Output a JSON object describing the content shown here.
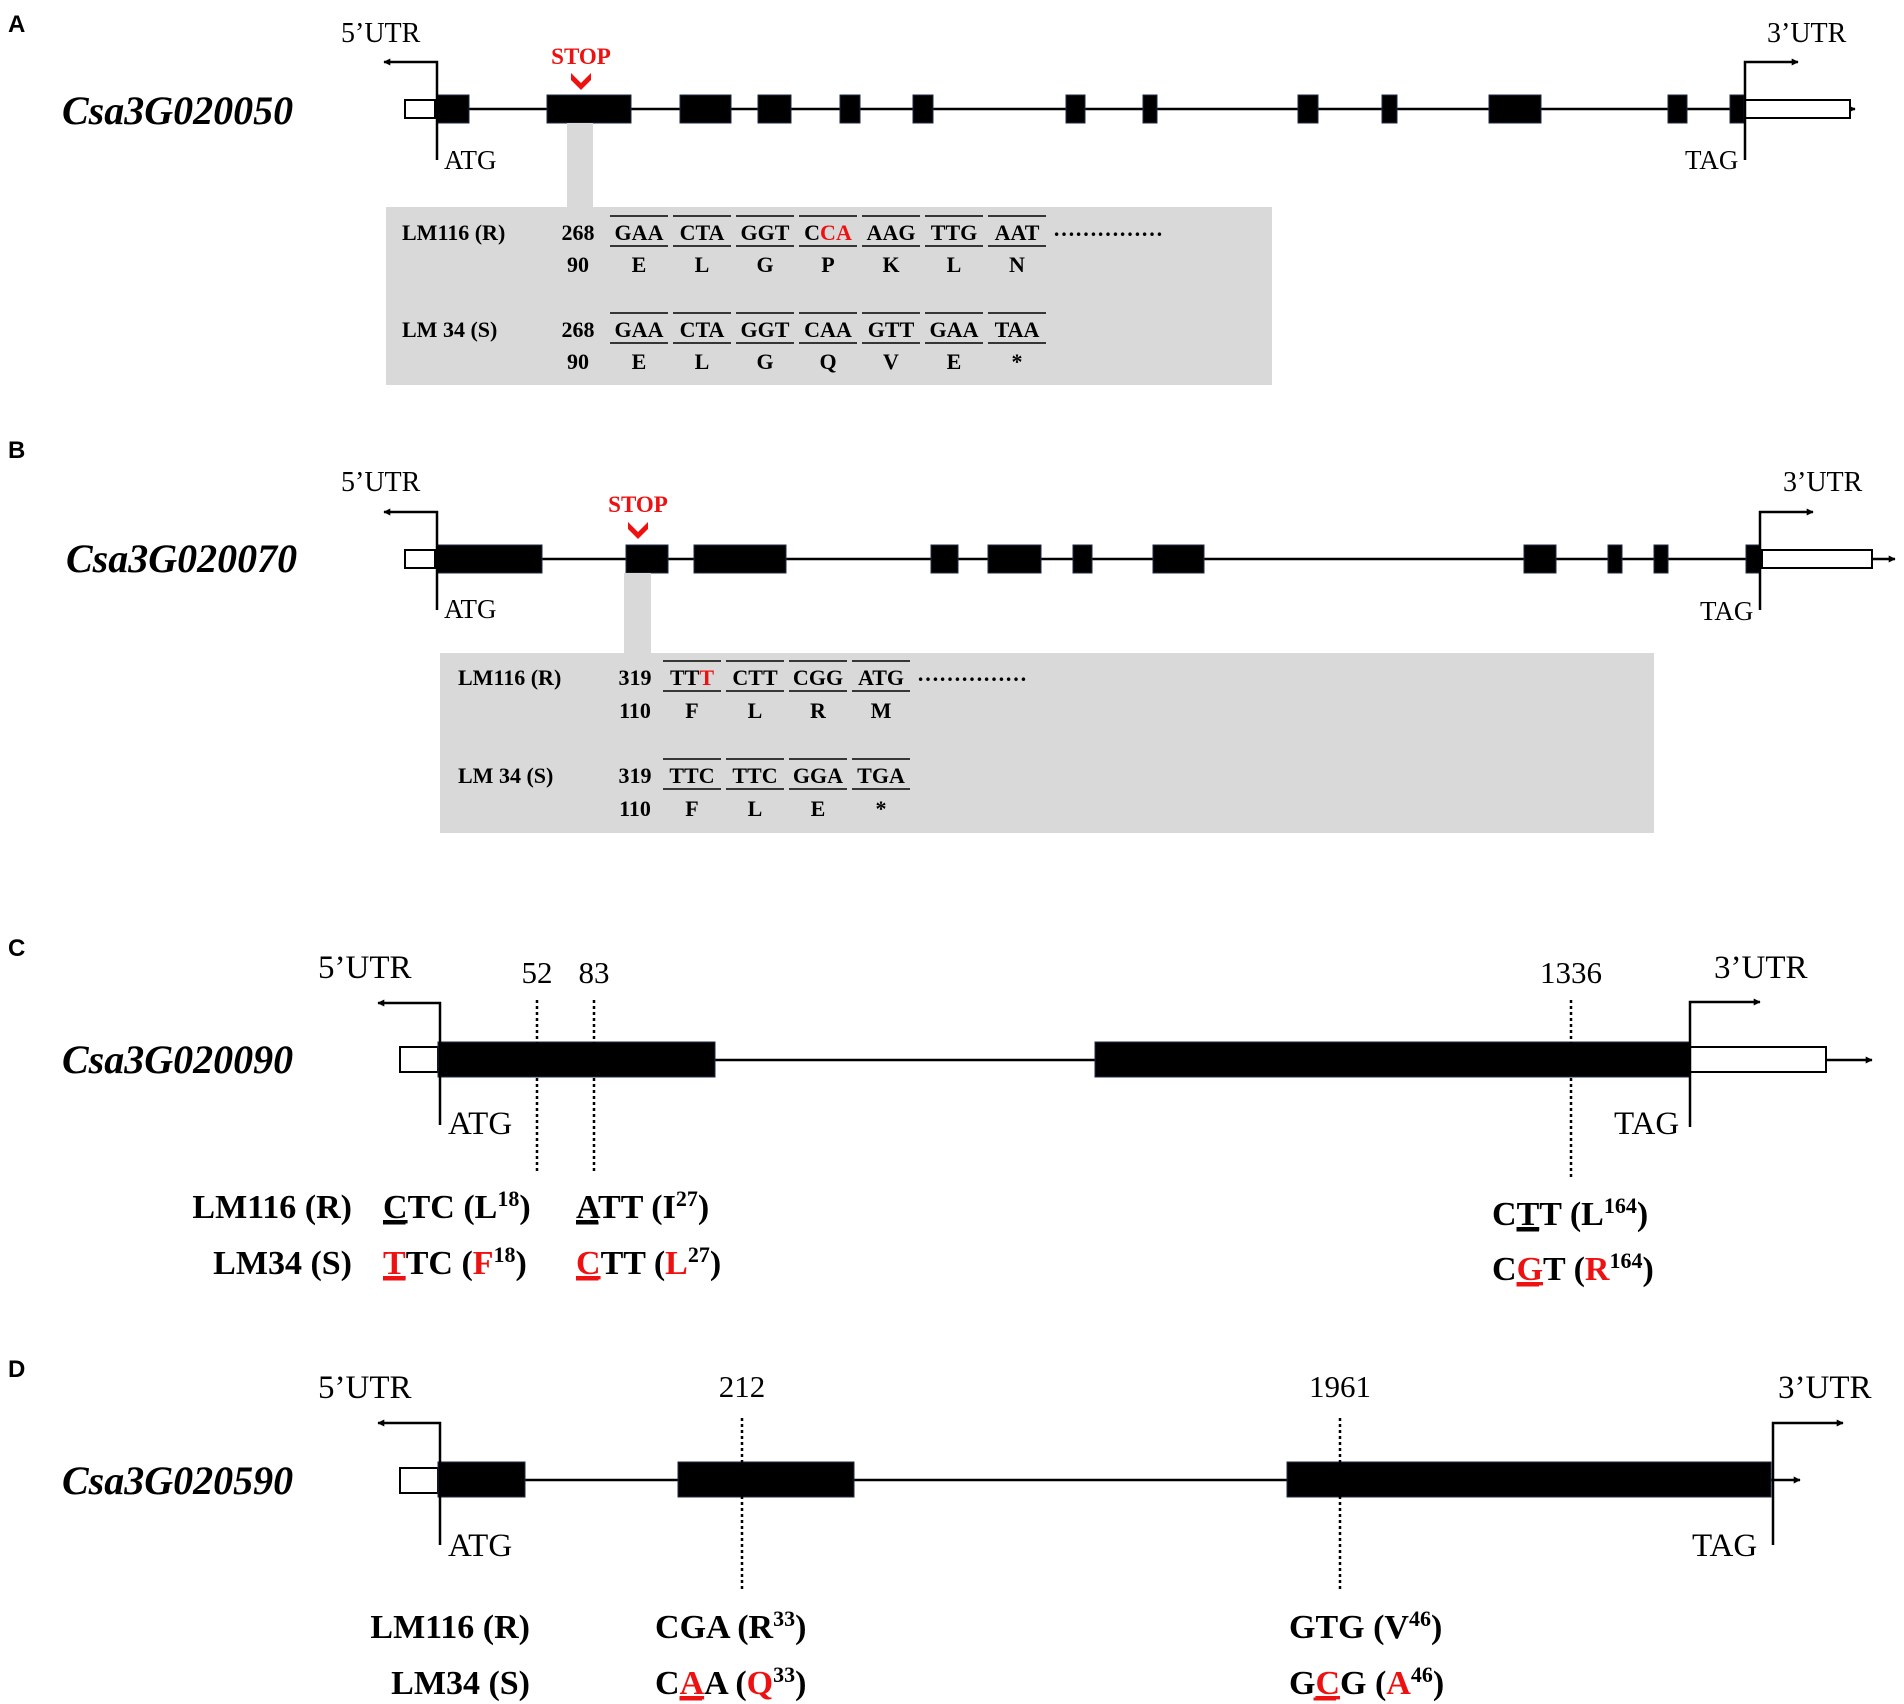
{
  "colors": {
    "exon": "#000000",
    "box": "#d9d9d9",
    "mutation": "#ee1111",
    "stroke": "#000000"
  },
  "panels": [
    {
      "letter": "A",
      "gene": "Csa3G020050",
      "utr5": "5’UTR",
      "utr3": "3’UTR",
      "start": "ATG",
      "stop": "TAG",
      "stop_marker": "STOP",
      "rows": [
        {
          "label": "LM116 (R)",
          "nt_pos": "268",
          "aa_pos": "90",
          "codons": [
            "GAA",
            "CTA",
            "GGT",
            "CCA",
            "AAG",
            "TTG",
            "AAT"
          ],
          "codon_red": [
            null,
            null,
            null,
            [
              1,
              2
            ],
            null,
            null,
            null
          ],
          "aas": [
            "E",
            "L",
            "G",
            "P",
            "K",
            "L",
            "N"
          ],
          "dots": "……………"
        },
        {
          "label": "LM 34  (S)",
          "nt_pos": "268",
          "aa_pos": "90",
          "codons": [
            "GAA",
            "CTA",
            "GGT",
            "CAA",
            "GTT",
            "GAA",
            "TAA"
          ],
          "codon_red": [
            null,
            null,
            null,
            null,
            null,
            null,
            null
          ],
          "aas": [
            "E",
            "L",
            "G",
            "Q",
            "V",
            "E",
            "*"
          ],
          "dots": ""
        }
      ]
    },
    {
      "letter": "B",
      "gene": "Csa3G020070",
      "utr5": "5’UTR",
      "utr3": "3’UTR",
      "start": "ATG",
      "stop": "TAG",
      "stop_marker": "STOP",
      "rows": [
        {
          "label": "LM116 (R)",
          "nt_pos": "319",
          "aa_pos": "110",
          "codons": [
            "TTT",
            "CTT",
            "CGG",
            "ATG"
          ],
          "codon_red": [
            [
              2
            ],
            null,
            null,
            null
          ],
          "aas": [
            "F",
            "L",
            "R",
            "M"
          ],
          "dots": "……………"
        },
        {
          "label": "LM 34  (S)",
          "nt_pos": "319",
          "aa_pos": "110",
          "codons": [
            "TTC",
            "TTC",
            "GGA",
            "TGA"
          ],
          "codon_red": [
            null,
            null,
            null,
            null
          ],
          "aas": [
            "F",
            "L",
            "E",
            "*"
          ],
          "dots": ""
        }
      ]
    },
    {
      "letter": "C",
      "gene": "Csa3G020090",
      "utr5": "5’UTR",
      "utr3": "3’UTR",
      "start": "ATG",
      "stop": "TAG",
      "row_labels": [
        "LM116 (R)",
        "LM34 (S)"
      ],
      "snps": [
        {
          "pos": "52",
          "r": {
            "codon": "CTC",
            "idx": 0,
            "aa": "L",
            "num": "18",
            "red": false
          },
          "s": {
            "codon": "TTC",
            "idx": 0,
            "aa": "F",
            "num": "18",
            "red": true
          }
        },
        {
          "pos": "83",
          "r": {
            "codon": "ATT",
            "idx": 0,
            "aa": "I",
            "num": "27",
            "red": false
          },
          "s": {
            "codon": "CTT",
            "idx": 0,
            "aa": "L",
            "num": "27",
            "red": true
          }
        },
        {
          "pos": "1336",
          "r": {
            "codon": "CTT",
            "idx": 1,
            "aa": "L",
            "num": "164",
            "red": false
          },
          "s": {
            "codon": "CGT",
            "idx": 1,
            "aa": "R",
            "num": "164",
            "red": true
          }
        }
      ]
    },
    {
      "letter": "D",
      "gene": "Csa3G020590",
      "utr5": "5’UTR",
      "utr3": "3’UTR",
      "start": "ATG",
      "stop": "TAG",
      "row_labels": [
        "LM116 (R)",
        "LM34 (S)"
      ],
      "snps": [
        {
          "pos": "212",
          "r": {
            "codon": "CGA",
            "idx": 1,
            "aa": "R",
            "num": "33",
            "red": false,
            "ul": false
          },
          "s": {
            "codon": "CAA",
            "idx": 1,
            "aa": "Q",
            "num": "33",
            "red": true,
            "ul": true
          }
        },
        {
          "pos": "1961",
          "r": {
            "codon": "GTG",
            "idx": 1,
            "aa": "V",
            "num": "46",
            "red": false,
            "ul": false
          },
          "s": {
            "codon": "GCG",
            "idx": 1,
            "aa": "A",
            "num": "46",
            "red": true,
            "ul": true
          }
        }
      ]
    }
  ]
}
